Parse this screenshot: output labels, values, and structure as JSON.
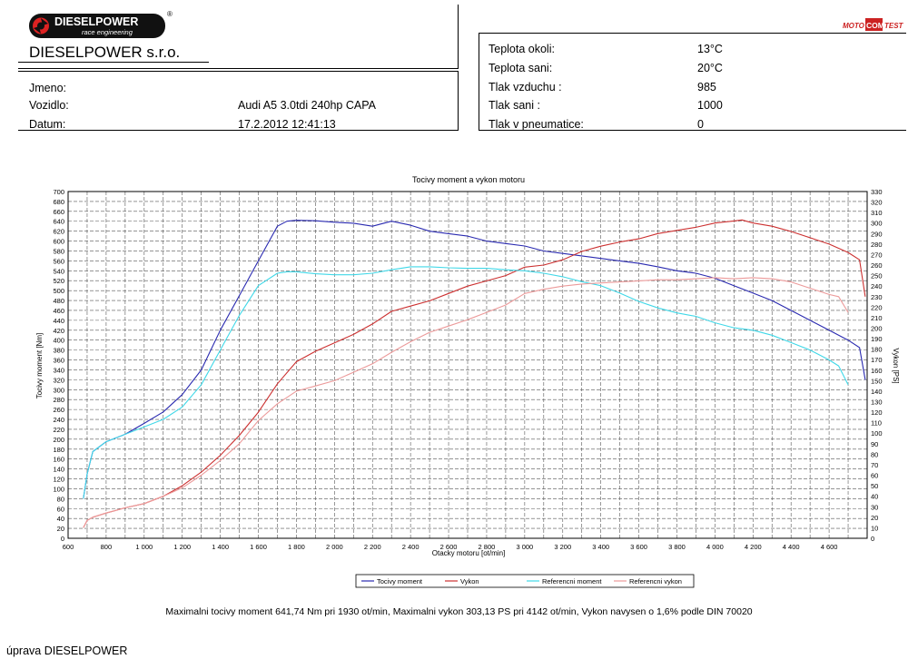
{
  "header": {
    "logo_brand": "DIESELPOWER",
    "logo_sub": "race engineering",
    "logo_reg": "®",
    "company": "DIESELPOWER s.r.o.",
    "badge": {
      "left": "MOTO",
      "mid": "COM",
      "right": "TEST"
    }
  },
  "vehicle_info": {
    "name_label": "Jmeno:",
    "name_value": "",
    "vehicle_label": "Vozidlo:",
    "vehicle_value": "Audi A5 3.0tdi 240hp CAPA",
    "date_label": "Datum:",
    "date_value": "17.2.2012 12:41:13"
  },
  "conditions": [
    {
      "label": "Teplota okoli:",
      "value": "13°C"
    },
    {
      "label": "Teplota sani:",
      "value": "20°C"
    },
    {
      "label": "Tlak vzduchu :",
      "value": "985"
    },
    {
      "label": "Tlak sani :",
      "value": "1000"
    },
    {
      "label": "Tlak v pneumatice:",
      "value": "0"
    }
  ],
  "chart_data": {
    "type": "line",
    "title": "Tocivy moment a vykon motoru",
    "xlabel": "Otacky motoru [ot/min]",
    "ylabel_left": "Tocivy moment [Nm]",
    "ylabel_right": "Vykon [PS]",
    "xlim": [
      600,
      4800
    ],
    "ylim_left": [
      0,
      700
    ],
    "ylim_right": [
      0,
      330
    ],
    "x_ticks": [
      "600",
      "800",
      "1 000",
      "1 200",
      "1 400",
      "1 600",
      "1 800",
      "2 000",
      "2 200",
      "2 400",
      "2 600",
      "2 800",
      "3 000",
      "3 200",
      "3 400",
      "3 600",
      "3 800",
      "4 000",
      "4 200",
      "4 400",
      "4 600"
    ],
    "grid": true,
    "legend_position": "bottom",
    "series": [
      {
        "name": "Tocivy moment",
        "axis": "left",
        "color": "#2a2ab0",
        "x": [
          680,
          700,
          730,
          800,
          900,
          1000,
          1100,
          1200,
          1300,
          1400,
          1500,
          1600,
          1700,
          1750,
          1800,
          1900,
          2000,
          2100,
          2200,
          2300,
          2400,
          2500,
          2600,
          2700,
          2800,
          2900,
          3000,
          3100,
          3200,
          3300,
          3400,
          3500,
          3600,
          3700,
          3800,
          3900,
          4000,
          4100,
          4200,
          4300,
          4400,
          4500,
          4600,
          4700,
          4760,
          4790
        ],
        "y": [
          80,
          130,
          175,
          195,
          210,
          232,
          255,
          290,
          340,
          420,
          490,
          560,
          630,
          640,
          642,
          641,
          638,
          636,
          630,
          640,
          632,
          620,
          615,
          610,
          600,
          595,
          590,
          580,
          575,
          570,
          565,
          560,
          555,
          548,
          540,
          535,
          525,
          510,
          495,
          480,
          460,
          440,
          420,
          400,
          385,
          320
        ]
      },
      {
        "name": "Vykon",
        "axis": "left_ps",
        "color": "#cc3030",
        "x": [
          680,
          700,
          730,
          800,
          900,
          1000,
          1100,
          1200,
          1300,
          1400,
          1500,
          1600,
          1700,
          1800,
          1900,
          2000,
          2100,
          2200,
          2300,
          2400,
          2500,
          2600,
          2700,
          2800,
          2900,
          3000,
          3100,
          3200,
          3300,
          3400,
          3500,
          3600,
          3700,
          3800,
          3900,
          4000,
          4100,
          4142,
          4200,
          4300,
          4400,
          4500,
          4600,
          4700,
          4760,
          4790
        ],
        "y": [
          10,
          17,
          20,
          24,
          29,
          33,
          40,
          50,
          63,
          79,
          98,
          120,
          147,
          168,
          178,
          186,
          194,
          204,
          216,
          221,
          226,
          233,
          240,
          245,
          250,
          258,
          260,
          265,
          273,
          278,
          282,
          285,
          290,
          293,
          296,
          300,
          302,
          303,
          300,
          297,
          292,
          286,
          280,
          272,
          265,
          230
        ]
      },
      {
        "name": "Referencni moment",
        "axis": "left",
        "color": "#40d8e8",
        "x": [
          680,
          700,
          730,
          800,
          900,
          1000,
          1100,
          1200,
          1300,
          1400,
          1500,
          1600,
          1700,
          1750,
          1800,
          1900,
          2000,
          2100,
          2200,
          2300,
          2400,
          2500,
          2600,
          2700,
          2800,
          2900,
          3000,
          3100,
          3200,
          3300,
          3400,
          3500,
          3600,
          3700,
          3800,
          3900,
          4000,
          4100,
          4200,
          4300,
          4400,
          4500,
          4600,
          4650,
          4700
        ],
        "y": [
          80,
          130,
          175,
          195,
          210,
          225,
          240,
          265,
          310,
          380,
          450,
          510,
          535,
          538,
          538,
          534,
          532,
          532,
          535,
          542,
          548,
          548,
          546,
          545,
          545,
          542,
          540,
          535,
          528,
          518,
          510,
          495,
          478,
          465,
          455,
          448,
          435,
          425,
          420,
          410,
          395,
          380,
          360,
          348,
          310
        ]
      },
      {
        "name": "Referencni vykon",
        "axis": "left_ps",
        "color": "#ec9a9a",
        "x": [
          680,
          700,
          730,
          800,
          900,
          1000,
          1100,
          1200,
          1300,
          1400,
          1500,
          1600,
          1700,
          1800,
          1900,
          2000,
          2100,
          2200,
          2300,
          2400,
          2500,
          2600,
          2700,
          2800,
          2900,
          3000,
          3100,
          3200,
          3300,
          3400,
          3500,
          3600,
          3700,
          3800,
          3900,
          4000,
          4100,
          4200,
          4300,
          4400,
          4500,
          4600,
          4650,
          4700
        ],
        "y": [
          10,
          17,
          20,
          24,
          29,
          33,
          40,
          48,
          60,
          74,
          90,
          112,
          128,
          140,
          145,
          150,
          158,
          166,
          177,
          187,
          196,
          202,
          208,
          215,
          222,
          233,
          237,
          240,
          242,
          243,
          244,
          245,
          246,
          246,
          247,
          248,
          247,
          248,
          247,
          244,
          238,
          232,
          230,
          215
        ]
      }
    ]
  },
  "summary": {
    "stats": "Maximalni tocivy moment 641,74 Nm pri 1930 ot/min,  Maximalni vykon 303,13 PS pri 4142 ot/min,  Vykon navysen o 1,6% podle DIN 70020",
    "note": "úprava DIESELPOWER"
  }
}
